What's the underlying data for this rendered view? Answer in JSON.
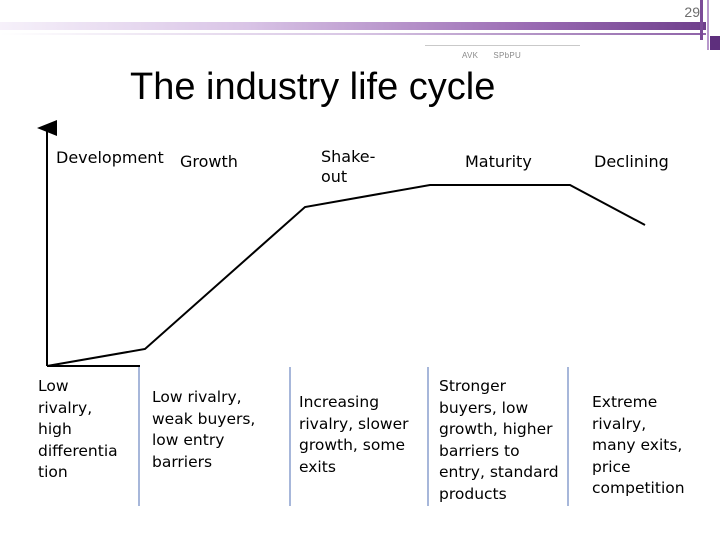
{
  "slide": {
    "page_number": "29",
    "source_left": "AVK",
    "source_right": "SPbPU",
    "title": "The industry life cycle"
  },
  "stages": [
    {
      "key": "development",
      "label": "Development",
      "description": "Low\nrivalry,\nhigh\ndifferentia\ntion"
    },
    {
      "key": "growth",
      "label": "Growth",
      "description": "Low rivalry,\nweak buyers,\nlow entry\nbarriers"
    },
    {
      "key": "shakeout",
      "label": "Shake-\nout",
      "description": "Increasing\nrivalry, slower\ngrowth, some\nexits"
    },
    {
      "key": "maturity",
      "label": "Maturity",
      "description": "Stronger\nbuyers, low\ngrowth, higher\nbarriers to\nentry, standard\nproducts"
    },
    {
      "key": "declining",
      "label": "Declining",
      "description": "Extreme\nrivalry,\nmany exits,\nprice\ncompetition"
    }
  ],
  "colors": {
    "accent_purple": "#7b4a98",
    "divider_blue": "#4f6fb5",
    "curve": "#000000"
  }
}
